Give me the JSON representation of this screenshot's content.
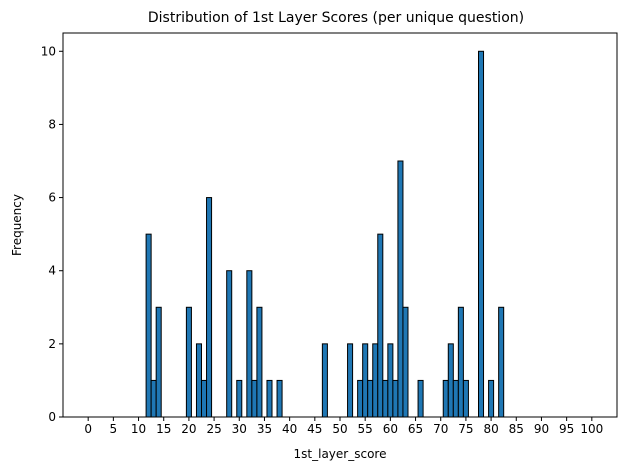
{
  "chart_data": {
    "type": "bar",
    "title": "Distribution of 1st Layer Scores (per unique question)",
    "xlabel": "1st_layer_score",
    "ylabel": "Frequency",
    "xlim": [
      -5,
      105
    ],
    "ylim": [
      0,
      10.5
    ],
    "xticks": [
      0,
      5,
      10,
      15,
      20,
      25,
      30,
      35,
      40,
      45,
      50,
      55,
      60,
      65,
      70,
      75,
      80,
      85,
      90,
      95,
      100
    ],
    "yticks": [
      0,
      2,
      4,
      6,
      8,
      10
    ],
    "bin_width": 1,
    "x": [
      12,
      13,
      14,
      20,
      22,
      23,
      24,
      28,
      30,
      32,
      33,
      34,
      36,
      38,
      47,
      52,
      54,
      55,
      56,
      57,
      58,
      59,
      60,
      61,
      62,
      63,
      66,
      71,
      72,
      73,
      74,
      75,
      78,
      80,
      82
    ],
    "values": [
      5,
      1,
      3,
      3,
      2,
      1,
      6,
      4,
      1,
      4,
      1,
      3,
      1,
      1,
      2,
      2,
      1,
      2,
      1,
      2,
      5,
      1,
      2,
      1,
      7,
      3,
      1,
      1,
      2,
      1,
      3,
      1,
      10,
      1,
      3
    ],
    "bar_color": "#1f77b4",
    "edge_color": "#000000",
    "grid": false,
    "legend": "none"
  }
}
